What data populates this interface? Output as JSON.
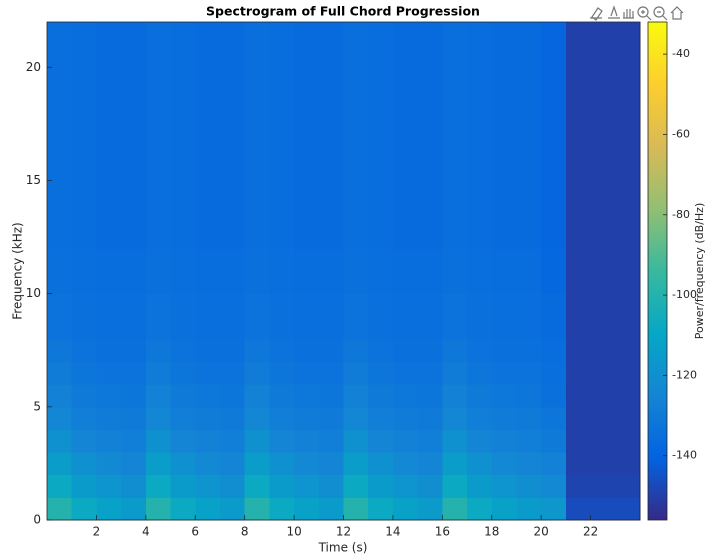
{
  "chart_data": {
    "type": "spectrogram",
    "title": "Spectrogram of Full Chord Progression",
    "xlabel": "Time (s)",
    "ylabel": "Frequency (kHz)",
    "colorbar_label": "Power/frequency (dB/Hz)",
    "colormap": "parula",
    "xlim": [
      0,
      24
    ],
    "ylim": [
      0,
      22
    ],
    "clim": [
      -156,
      -32
    ],
    "xticks": [
      2,
      4,
      6,
      8,
      10,
      12,
      14,
      16,
      18,
      20,
      22
    ],
    "yticks": [
      0,
      5,
      10,
      15,
      20
    ],
    "cticks": [
      -140,
      -120,
      -100,
      -80,
      -60,
      -40
    ],
    "time_edges": [
      0,
      1,
      2,
      3,
      4,
      5,
      6,
      7,
      8,
      9,
      10,
      11,
      12,
      13,
      14,
      15,
      16,
      17,
      18,
      19,
      20,
      21,
      22,
      23,
      24
    ],
    "freq_edges": [
      0,
      1,
      2,
      3,
      4,
      5,
      6,
      7,
      8,
      10,
      12,
      14,
      16,
      18,
      20,
      22
    ],
    "z": [
      [
        -100,
        -108,
        -112,
        -115,
        -100,
        -108,
        -112,
        -115,
        -100,
        -108,
        -112,
        -115,
        -100,
        -108,
        -112,
        -115,
        -100,
        -108,
        -112,
        -115,
        -117,
        -147,
        -147,
        -147
      ],
      [
        -108,
        -115,
        -118,
        -121,
        -108,
        -115,
        -118,
        -121,
        -108,
        -115,
        -118,
        -121,
        -108,
        -115,
        -118,
        -121,
        -108,
        -115,
        -118,
        -121,
        -123,
        -149,
        -149,
        -149
      ],
      [
        -114,
        -120,
        -123,
        -125,
        -114,
        -120,
        -123,
        -125,
        -114,
        -120,
        -123,
        -125,
        -114,
        -120,
        -123,
        -125,
        -114,
        -120,
        -123,
        -125,
        -127,
        -150,
        -150,
        -150
      ],
      [
        -120,
        -125,
        -127,
        -128,
        -120,
        -125,
        -127,
        -128,
        -120,
        -125,
        -127,
        -128,
        -120,
        -125,
        -127,
        -128,
        -120,
        -125,
        -127,
        -128,
        -130,
        -150,
        -150,
        -150
      ],
      [
        -124,
        -128,
        -129,
        -130,
        -124,
        -128,
        -129,
        -130,
        -124,
        -128,
        -129,
        -130,
        -124,
        -128,
        -129,
        -130,
        -124,
        -128,
        -129,
        -130,
        -132,
        -150,
        -150,
        -150
      ],
      [
        -127,
        -130,
        -131,
        -132,
        -127,
        -130,
        -131,
        -132,
        -127,
        -130,
        -131,
        -132,
        -127,
        -130,
        -131,
        -132,
        -127,
        -130,
        -131,
        -132,
        -134,
        -150,
        -150,
        -150
      ],
      [
        -129,
        -132,
        -133,
        -133,
        -129,
        -132,
        -133,
        -133,
        -129,
        -132,
        -133,
        -133,
        -129,
        -132,
        -133,
        -133,
        -129,
        -132,
        -133,
        -133,
        -135,
        -150,
        -150,
        -150
      ],
      [
        -131,
        -133,
        -134,
        -134,
        -131,
        -133,
        -134,
        -134,
        -131,
        -133,
        -134,
        -134,
        -131,
        -133,
        -134,
        -134,
        -131,
        -133,
        -134,
        -134,
        -136,
        -150,
        -150,
        -150
      ],
      [
        -133,
        -134,
        -135,
        -135,
        -133,
        -134,
        -135,
        -135,
        -133,
        -134,
        -135,
        -135,
        -133,
        -134,
        -135,
        -135,
        -133,
        -134,
        -135,
        -135,
        -137,
        -150,
        -150,
        -150
      ],
      [
        -134,
        -135,
        -136,
        -136,
        -134,
        -135,
        -136,
        -136,
        -134,
        -135,
        -136,
        -136,
        -134,
        -135,
        -136,
        -136,
        -134,
        -135,
        -136,
        -136,
        -138,
        -150,
        -150,
        -150
      ],
      [
        -135,
        -136,
        -137,
        -137,
        -135,
        -136,
        -137,
        -137,
        -135,
        -136,
        -137,
        -137,
        -135,
        -136,
        -137,
        -137,
        -135,
        -136,
        -137,
        -137,
        -139,
        -150,
        -150,
        -150
      ],
      [
        -135,
        -136,
        -137,
        -137,
        -135,
        -136,
        -137,
        -137,
        -135,
        -136,
        -137,
        -137,
        -135,
        -136,
        -137,
        -137,
        -135,
        -136,
        -137,
        -137,
        -139,
        -150,
        -150,
        -150
      ],
      [
        -135,
        -136,
        -137,
        -137,
        -135,
        -136,
        -137,
        -137,
        -135,
        -136,
        -137,
        -137,
        -135,
        -136,
        -137,
        -137,
        -135,
        -136,
        -137,
        -137,
        -139,
        -150,
        -150,
        -150
      ],
      [
        -135,
        -136,
        -137,
        -137,
        -135,
        -136,
        -137,
        -137,
        -135,
        -136,
        -137,
        -137,
        -135,
        -136,
        -137,
        -137,
        -135,
        -136,
        -137,
        -137,
        -139,
        -150,
        -150,
        -150
      ],
      [
        -135,
        -136,
        -137,
        -137,
        -135,
        -136,
        -137,
        -137,
        -135,
        -136,
        -137,
        -137,
        -135,
        -136,
        -137,
        -137,
        -135,
        -136,
        -137,
        -137,
        -139,
        -150,
        -150,
        -150
      ]
    ]
  }
}
